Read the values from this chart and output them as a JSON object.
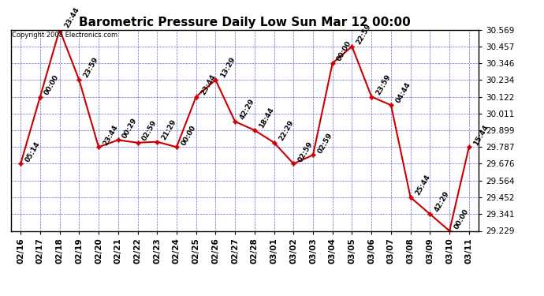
{
  "title": "Barometric Pressure Daily Low Sun Mar 12 00:00",
  "copyright": "Copyright 2008 Electronics.com",
  "x_labels": [
    "02/16",
    "02/17",
    "02/18",
    "02/19",
    "02/20",
    "02/21",
    "02/22",
    "02/23",
    "02/24",
    "02/25",
    "02/26",
    "02/27",
    "02/28",
    "03/01",
    "03/02",
    "03/03",
    "03/04",
    "03/05",
    "03/06",
    "03/07",
    "03/08",
    "03/09",
    "03/10",
    "03/11"
  ],
  "y_values": [
    29.676,
    30.122,
    30.569,
    30.234,
    29.787,
    29.834,
    29.816,
    29.822,
    29.787,
    30.122,
    30.234,
    29.957,
    29.899,
    29.817,
    29.676,
    29.734,
    30.346,
    30.457,
    30.122,
    30.066,
    29.452,
    29.341,
    29.229,
    29.787
  ],
  "point_labels": [
    "05:14",
    "00:00",
    "23:44",
    "23:59",
    "23:44",
    "00:29",
    "02:59",
    "21:29",
    "00:00",
    "23:44",
    "13:29",
    "42:29",
    "18:44",
    "22:29",
    "02:59",
    "02:59",
    "00:00",
    "22:59",
    "23:59",
    "04:44",
    "25:44",
    "42:29",
    "00:00",
    "15:44"
  ],
  "ylim_min": 29.229,
  "ylim_max": 30.569,
  "y_ticks": [
    29.229,
    29.341,
    29.452,
    29.564,
    29.676,
    29.787,
    29.899,
    30.011,
    30.122,
    30.234,
    30.346,
    30.457,
    30.569
  ],
  "line_color": "#cc0000",
  "marker_color": "#cc0000",
  "bg_color": "#ffffff",
  "plot_bg_color": "#ffffff",
  "grid_color": "#0000cc",
  "title_fontsize": 11,
  "tick_fontsize": 7.5,
  "label_fontsize": 6.5
}
